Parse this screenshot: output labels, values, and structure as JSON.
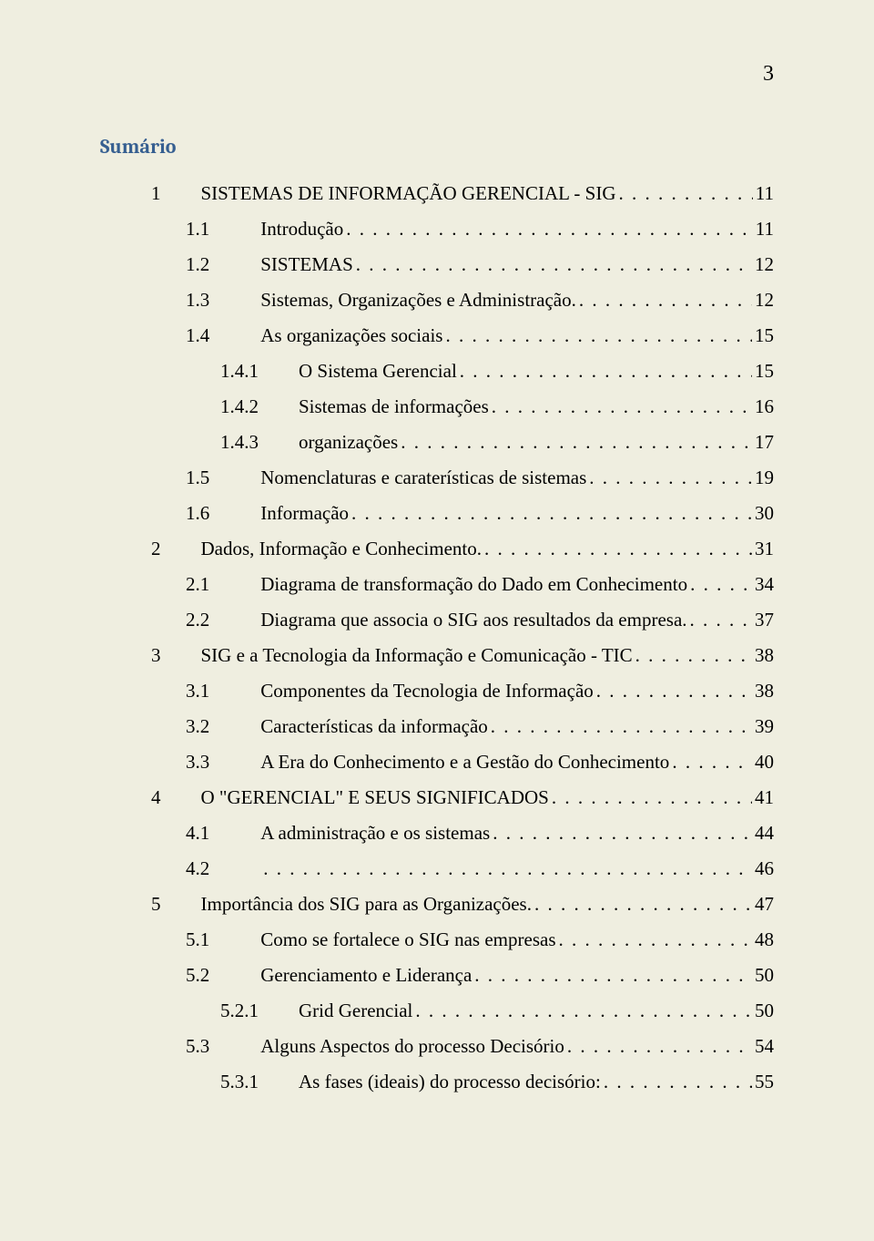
{
  "page_number": "3",
  "heading": "Sumário",
  "background_color": "#efeee0",
  "heading_color": "#365f91",
  "text_color": "#000000",
  "body_font": "Times New Roman",
  "heading_font": "Cambria",
  "body_fontsize": 21,
  "heading_fontsize": 22,
  "toc": [
    {
      "level": 1,
      "num": "1",
      "title": "SISTEMAS DE INFORMAÇÃO GERENCIAL - SIG",
      "page": "11"
    },
    {
      "level": 2,
      "num": "1.1",
      "title": "Introdução",
      "page": "11"
    },
    {
      "level": 2,
      "num": "1.2",
      "title": "SISTEMAS",
      "page": "12"
    },
    {
      "level": 2,
      "num": "1.3",
      "title": "Sistemas, Organizações e Administração.",
      "page": "12"
    },
    {
      "level": 2,
      "num": "1.4",
      "title": "As organizações sociais",
      "page": "15"
    },
    {
      "level": 3,
      "num": "1.4.1",
      "title": "O Sistema Gerencial",
      "page": "15"
    },
    {
      "level": 3,
      "num": "1.4.2",
      "title": "Sistemas de informações",
      "page": "16"
    },
    {
      "level": 3,
      "num": "1.4.3",
      "title": "organizações",
      "page": "17"
    },
    {
      "level": 2,
      "num": "1.5",
      "title": "Nomenclaturas e caraterísticas de sistemas",
      "page": "19"
    },
    {
      "level": 2,
      "num": "1.6",
      "title": "Informação",
      "page": "30"
    },
    {
      "level": 1,
      "num": "2",
      "title": "Dados, Informação e Conhecimento.",
      "page": "31"
    },
    {
      "level": 2,
      "num": "2.1",
      "title": "Diagrama de transformação do Dado em Conhecimento",
      "page": "34"
    },
    {
      "level": 2,
      "num": "2.2",
      "title": "Diagrama que associa o SIG aos resultados da empresa.",
      "page": "37"
    },
    {
      "level": 1,
      "num": "3",
      "title": "SIG e a Tecnologia da Informação e Comunicação - TIC",
      "page": "38"
    },
    {
      "level": 2,
      "num": "3.1",
      "title": "Componentes da Tecnologia de Informação",
      "page": "38"
    },
    {
      "level": 2,
      "num": "3.2",
      "title": "Características da informação",
      "page": "39"
    },
    {
      "level": 2,
      "num": "3.3",
      "title": "A Era do Conhecimento e a Gestão do Conhecimento",
      "page": "40"
    },
    {
      "level": 1,
      "num": "4",
      "title": "O \"GERENCIAL\" E SEUS SIGNIFICADOS",
      "page": "41"
    },
    {
      "level": 2,
      "num": "4.1",
      "title": "A administração e os sistemas",
      "page": "44"
    },
    {
      "level": 2,
      "num": "4.2",
      "title": "",
      "page": "46"
    },
    {
      "level": 1,
      "num": "5",
      "title": "Importância dos SIG para as Organizações.",
      "page": "47"
    },
    {
      "level": 2,
      "num": "5.1",
      "title": "Como se fortalece o SIG nas empresas",
      "page": "48"
    },
    {
      "level": 2,
      "num": "5.2",
      "title": "Gerenciamento e Liderança",
      "page": "50"
    },
    {
      "level": 3,
      "num": "5.2.1",
      "title": "Grid Gerencial",
      "page": "50"
    },
    {
      "level": 2,
      "num": "5.3",
      "title": "Alguns Aspectos do processo Decisório",
      "page": "54"
    },
    {
      "level": 3,
      "num": "5.3.1",
      "title": "As fases (ideais) do processo decisório:",
      "page": "55"
    }
  ]
}
